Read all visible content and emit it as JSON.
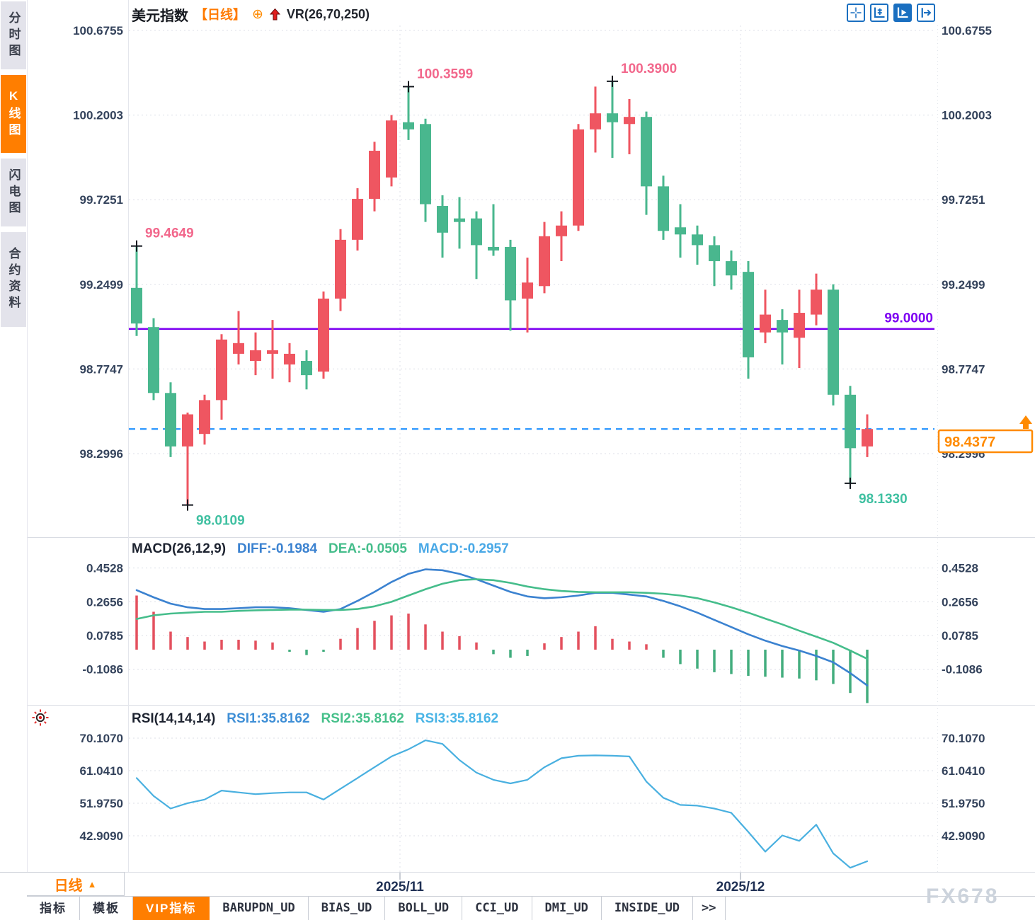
{
  "sidebar": {
    "items": [
      {
        "label": "分时图",
        "active": false
      },
      {
        "label": "K线图",
        "active": true
      },
      {
        "label": "闪电图",
        "active": false
      },
      {
        "label": "合约资料",
        "active": false
      }
    ]
  },
  "titlebar": {
    "symbol": "美元指数",
    "period": "【日线】",
    "add_icon": "⊕",
    "overlay": "VR(26,70,250)"
  },
  "toolbar": {
    "icons": [
      "pan-crosshair",
      "scale-axis",
      "play-axis",
      "shift-right"
    ],
    "active_icon": "play-axis"
  },
  "bottom": {
    "period_label": "日线",
    "period_arrow": "▲",
    "tabs": [
      {
        "label": "指标",
        "active": false
      },
      {
        "label": "模板",
        "active": false
      },
      {
        "label": "VIP指标",
        "active": true
      },
      {
        "label": "BARUPDN_UD",
        "active": false
      },
      {
        "label": "BIAS_UD",
        "active": false
      },
      {
        "label": "BOLL_UD",
        "active": false
      },
      {
        "label": "CCI_UD",
        "active": false
      },
      {
        "label": "DMI_UD",
        "active": false
      },
      {
        "label": "INSIDE_UD",
        "active": false
      },
      {
        "label": ">>",
        "active": false
      }
    ],
    "watermark": "FX678"
  },
  "colors": {
    "up": "#ef5661",
    "down": "#49b78e",
    "hline": "#7d00f2",
    "last_price": "#ff8a00",
    "dashed_line": "#1e90ff",
    "diff": "#3b82d0",
    "dea": "#45bd8b",
    "macd_hist_up": "#e4505e",
    "macd_hist_down": "#43ad7e",
    "rsi": "#49b0e0",
    "accent": "#ff7e00",
    "axis_text": "#33425b",
    "annotation_high": "#f2688c",
    "annotation_low": "#3fc0a1"
  },
  "chart_data": [
    {
      "type": "candlestick",
      "title": "美元指数",
      "period": "日线",
      "y_ticks": [
        100.6755,
        100.2003,
        99.7251,
        99.2499,
        98.7747,
        98.2996
      ],
      "ylim": [
        97.95,
        100.6755
      ],
      "x_tick_labels": [
        "2025/11",
        "2025/12"
      ],
      "candles": [
        {
          "o": 99.23,
          "h": 99.4649,
          "l": 98.96,
          "c": 99.03
        },
        {
          "o": 99.01,
          "h": 99.06,
          "l": 98.6,
          "c": 98.64
        },
        {
          "o": 98.64,
          "h": 98.7,
          "l": 98.28,
          "c": 98.34
        },
        {
          "o": 98.34,
          "h": 98.53,
          "l": 98.0109,
          "c": 98.52
        },
        {
          "o": 98.41,
          "h": 98.63,
          "l": 98.35,
          "c": 98.6
        },
        {
          "o": 98.6,
          "h": 98.97,
          "l": 98.49,
          "c": 98.94
        },
        {
          "o": 98.86,
          "h": 99.1,
          "l": 98.8,
          "c": 98.92
        },
        {
          "o": 98.82,
          "h": 98.98,
          "l": 98.74,
          "c": 98.88
        },
        {
          "o": 98.86,
          "h": 99.05,
          "l": 98.72,
          "c": 98.88
        },
        {
          "o": 98.8,
          "h": 98.92,
          "l": 98.7,
          "c": 98.86
        },
        {
          "o": 98.82,
          "h": 98.88,
          "l": 98.66,
          "c": 98.74
        },
        {
          "o": 98.76,
          "h": 99.21,
          "l": 98.72,
          "c": 99.17
        },
        {
          "o": 99.17,
          "h": 99.56,
          "l": 99.1,
          "c": 99.5
        },
        {
          "o": 99.5,
          "h": 99.79,
          "l": 99.44,
          "c": 99.73
        },
        {
          "o": 99.73,
          "h": 100.05,
          "l": 99.66,
          "c": 100.0
        },
        {
          "o": 99.85,
          "h": 100.2,
          "l": 99.8,
          "c": 100.17
        },
        {
          "o": 100.16,
          "h": 100.3599,
          "l": 100.06,
          "c": 100.12
        },
        {
          "o": 100.15,
          "h": 100.18,
          "l": 99.6,
          "c": 99.7
        },
        {
          "o": 99.69,
          "h": 99.75,
          "l": 99.4,
          "c": 99.54
        },
        {
          "o": 99.62,
          "h": 99.74,
          "l": 99.45,
          "c": 99.6
        },
        {
          "o": 99.62,
          "h": 99.66,
          "l": 99.28,
          "c": 99.47
        },
        {
          "o": 99.46,
          "h": 99.7,
          "l": 99.41,
          "c": 99.44
        },
        {
          "o": 99.46,
          "h": 99.5,
          "l": 98.99,
          "c": 99.16
        },
        {
          "o": 99.17,
          "h": 99.4,
          "l": 98.98,
          "c": 99.26
        },
        {
          "o": 99.24,
          "h": 99.6,
          "l": 99.2,
          "c": 99.52
        },
        {
          "o": 99.52,
          "h": 99.66,
          "l": 99.38,
          "c": 99.58
        },
        {
          "o": 99.58,
          "h": 100.15,
          "l": 99.55,
          "c": 100.12
        },
        {
          "o": 100.12,
          "h": 100.36,
          "l": 99.99,
          "c": 100.21
        },
        {
          "o": 100.21,
          "h": 100.39,
          "l": 99.96,
          "c": 100.16
        },
        {
          "o": 100.15,
          "h": 100.29,
          "l": 99.98,
          "c": 100.19
        },
        {
          "o": 100.19,
          "h": 100.22,
          "l": 99.64,
          "c": 99.8
        },
        {
          "o": 99.8,
          "h": 99.86,
          "l": 99.5,
          "c": 99.55
        },
        {
          "o": 99.57,
          "h": 99.7,
          "l": 99.4,
          "c": 99.53
        },
        {
          "o": 99.53,
          "h": 99.58,
          "l": 99.36,
          "c": 99.47
        },
        {
          "o": 99.47,
          "h": 99.52,
          "l": 99.24,
          "c": 99.38
        },
        {
          "o": 99.38,
          "h": 99.44,
          "l": 99.22,
          "c": 99.3
        },
        {
          "o": 99.32,
          "h": 99.38,
          "l": 98.72,
          "c": 98.84
        },
        {
          "o": 98.98,
          "h": 99.22,
          "l": 98.92,
          "c": 99.08
        },
        {
          "o": 99.05,
          "h": 99.11,
          "l": 98.8,
          "c": 98.98
        },
        {
          "o": 98.95,
          "h": 99.22,
          "l": 98.78,
          "c": 99.09
        },
        {
          "o": 99.08,
          "h": 99.31,
          "l": 99.02,
          "c": 99.22
        },
        {
          "o": 99.22,
          "h": 99.25,
          "l": 98.57,
          "c": 98.63
        },
        {
          "o": 98.63,
          "h": 98.68,
          "l": 98.133,
          "c": 98.33
        },
        {
          "o": 98.34,
          "h": 98.52,
          "l": 98.28,
          "c": 98.4377
        }
      ],
      "annotations": [
        {
          "candle": 0,
          "at": "high",
          "text": "99.4649",
          "color": "#f2688c"
        },
        {
          "candle": 3,
          "at": "low",
          "text": "98.0109",
          "color": "#3fc0a1"
        },
        {
          "candle": 16,
          "at": "high",
          "text": "100.3599",
          "color": "#f2688c"
        },
        {
          "candle": 28,
          "at": "high",
          "text": "100.3900",
          "color": "#f2688c"
        },
        {
          "candle": 42,
          "at": "low",
          "text": "98.1330",
          "color": "#3fc0a1"
        }
      ],
      "hline": {
        "value": 99.0,
        "label": "99.0000",
        "color": "#7d00f2"
      },
      "last_price": {
        "value": 98.4377,
        "label": "98.4377",
        "color": "#ff8a00",
        "line_color": "#1e90ff"
      }
    },
    {
      "type": "bar",
      "name": "MACD",
      "params_label": "MACD(26,12,9)",
      "legend": [
        {
          "label": "DIFF:-0.1984",
          "color": "#3b82d0"
        },
        {
          "label": "DEA:-0.0505",
          "color": "#45bd8b"
        },
        {
          "label": "MACD:-0.2957",
          "color": "#49a8e6"
        }
      ],
      "y_ticks": [
        0.4528,
        0.2656,
        0.0785,
        -0.1086
      ],
      "histogram": [
        0.3,
        0.21,
        0.1,
        0.07,
        0.045,
        0.055,
        0.055,
        0.05,
        0.04,
        -0.012,
        -0.03,
        -0.012,
        0.06,
        0.12,
        0.16,
        0.19,
        0.2,
        0.14,
        0.1,
        0.075,
        0.04,
        -0.025,
        -0.045,
        -0.035,
        0.035,
        0.07,
        0.1,
        0.13,
        0.06,
        0.045,
        0.03,
        -0.045,
        -0.08,
        -0.105,
        -0.125,
        -0.135,
        -0.145,
        -0.15,
        -0.155,
        -0.16,
        -0.17,
        -0.19,
        -0.24,
        -0.2957
      ],
      "diff": [
        0.33,
        0.29,
        0.255,
        0.235,
        0.225,
        0.225,
        0.23,
        0.235,
        0.235,
        0.23,
        0.22,
        0.21,
        0.225,
        0.27,
        0.32,
        0.375,
        0.42,
        0.445,
        0.44,
        0.42,
        0.39,
        0.355,
        0.32,
        0.295,
        0.285,
        0.29,
        0.3,
        0.315,
        0.315,
        0.305,
        0.295,
        0.27,
        0.24,
        0.205,
        0.165,
        0.125,
        0.085,
        0.05,
        0.02,
        -0.005,
        -0.035,
        -0.07,
        -0.13,
        -0.1984
      ],
      "dea": [
        0.17,
        0.19,
        0.2,
        0.205,
        0.21,
        0.21,
        0.215,
        0.218,
        0.22,
        0.222,
        0.222,
        0.22,
        0.22,
        0.225,
        0.24,
        0.265,
        0.3,
        0.335,
        0.365,
        0.385,
        0.39,
        0.385,
        0.37,
        0.35,
        0.335,
        0.325,
        0.32,
        0.318,
        0.318,
        0.318,
        0.315,
        0.31,
        0.3,
        0.285,
        0.262,
        0.235,
        0.205,
        0.172,
        0.14,
        0.105,
        0.072,
        0.038,
        -0.005,
        -0.0505
      ]
    },
    {
      "type": "line",
      "name": "RSI",
      "params_label": "RSI(14,14,14)",
      "legend": [
        {
          "label": "RSI1:35.8162",
          "color": "#3f8fd6"
        },
        {
          "label": "RSI2:35.8162",
          "color": "#46c08a"
        },
        {
          "label": "RSI3:35.8162",
          "color": "#49b4e6"
        }
      ],
      "y_ticks": [
        70.107,
        61.041,
        51.975,
        42.909
      ],
      "values": [
        59.0,
        54.0,
        50.5,
        52.0,
        53.0,
        55.5,
        55.0,
        54.5,
        54.8,
        55.0,
        55.0,
        53.0,
        56.0,
        59.0,
        62.0,
        65.0,
        67.0,
        69.5,
        68.5,
        64.0,
        60.5,
        58.5,
        57.5,
        58.5,
        62.0,
        64.5,
        65.2,
        65.3,
        65.2,
        65.0,
        58.0,
        53.5,
        51.5,
        51.3,
        50.5,
        49.3,
        44.0,
        38.5,
        43.0,
        41.5,
        46.0,
        38.0,
        34.0,
        35.8162
      ]
    }
  ]
}
